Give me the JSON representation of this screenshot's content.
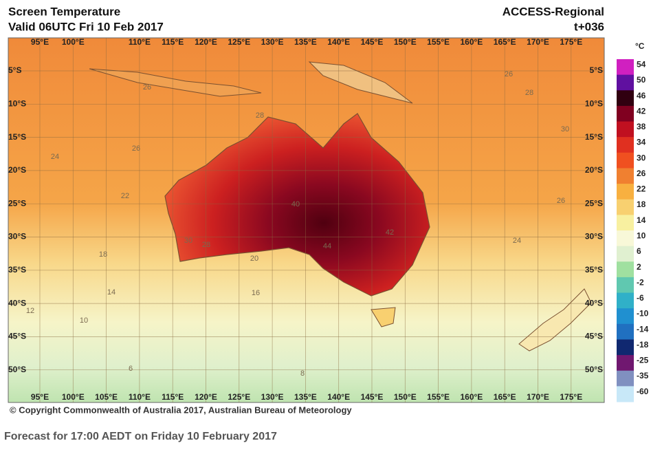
{
  "header": {
    "title": "Screen Temperature",
    "valid": "Valid 06UTC Fri 10 Feb 2017",
    "model": "ACCESS-Regional",
    "lead": "t+036"
  },
  "map": {
    "lon_labels_top": [
      "95°E",
      "100°E",
      "110°E",
      "115°E",
      "120°E",
      "125°E",
      "130°E",
      "135°E",
      "140°E",
      "145°E",
      "150°E",
      "155°E",
      "160°E",
      "165°E",
      "170°E",
      "175°E"
    ],
    "lon_labels_bottom": [
      "95°E",
      "100°E",
      "105°E",
      "110°E",
      "115°E",
      "120°E",
      "125°E",
      "130°E",
      "135°E",
      "140°E",
      "145°E",
      "150°E",
      "155°E",
      "160°E",
      "165°E",
      "170°E",
      "175°E"
    ],
    "lat_labels": [
      "5°S",
      "10°S",
      "15°S",
      "20°S",
      "25°S",
      "30°S",
      "35°S",
      "40°S",
      "45°S",
      "50°S"
    ],
    "contour_labels": [
      "28",
      "26",
      "24",
      "22",
      "18",
      "14",
      "12",
      "10",
      "6",
      "8",
      "40",
      "44",
      "30",
      "28",
      "20",
      "16",
      "26",
      "26",
      "28",
      "30",
      "26",
      "24",
      "42"
    ]
  },
  "colorbar": {
    "unit": "°C",
    "labels": [
      54,
      50,
      46,
      42,
      38,
      34,
      30,
      26,
      22,
      18,
      14,
      10,
      6,
      2,
      -2,
      -6,
      -10,
      -14,
      -18,
      -25,
      -35,
      -60
    ],
    "colors": [
      "#d020c0",
      "#6010a0",
      "#300010",
      "#800020",
      "#c01020",
      "#e03020",
      "#f05020",
      "#f08030",
      "#f8b040",
      "#f8d070",
      "#f8f0a0",
      "#f8f8d8",
      "#e0f0d0",
      "#a0e0a0",
      "#60c8b0",
      "#30b0c8",
      "#2090d0",
      "#2070c0",
      "#102870",
      "#701870",
      "#8090c0",
      "#c8e8f8"
    ]
  },
  "copyright": "© Copyright Commonwealth of Australia 2017, Australian Bureau of Meteorology",
  "caption": "Forecast for 17:00 AEDT on Friday 10 February 2017"
}
